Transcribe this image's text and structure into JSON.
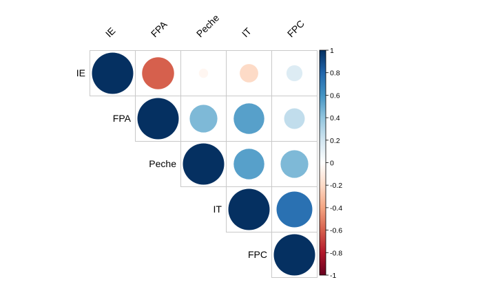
{
  "chart_data": {
    "type": "heatmap",
    "subtype": "correlation-matrix-upper-circles",
    "variables": [
      "IE",
      "FPA",
      "Peche",
      "IT",
      "FPC"
    ],
    "matrix": [
      [
        1.0,
        -0.6,
        -0.05,
        -0.2,
        0.15
      ],
      [
        null,
        1.0,
        0.45,
        0.55,
        0.25
      ],
      [
        null,
        null,
        1.0,
        0.55,
        0.45
      ],
      [
        null,
        null,
        null,
        1.0,
        0.75
      ],
      [
        null,
        null,
        null,
        null,
        1.0
      ]
    ],
    "color_scale": {
      "range": [
        -1,
        1
      ],
      "ticks": [
        "1",
        "0.8",
        "0.6",
        "0.4",
        "0.2",
        "0",
        "-0.2",
        "-0.4",
        "-0.6",
        "-0.8",
        "-1"
      ],
      "colors": {
        "-1": "#67001f",
        "-0.8": "#b2182b",
        "-0.6": "#d6604d",
        "-0.4": "#f4a582",
        "-0.2": "#fddbc7",
        "0": "#ffffff",
        "0.2": "#d1e5f0",
        "0.4": "#92c5de",
        "0.6": "#4393c3",
        "0.8": "#2166ac",
        "1": "#053061"
      }
    },
    "grid": true,
    "legend": "right"
  }
}
